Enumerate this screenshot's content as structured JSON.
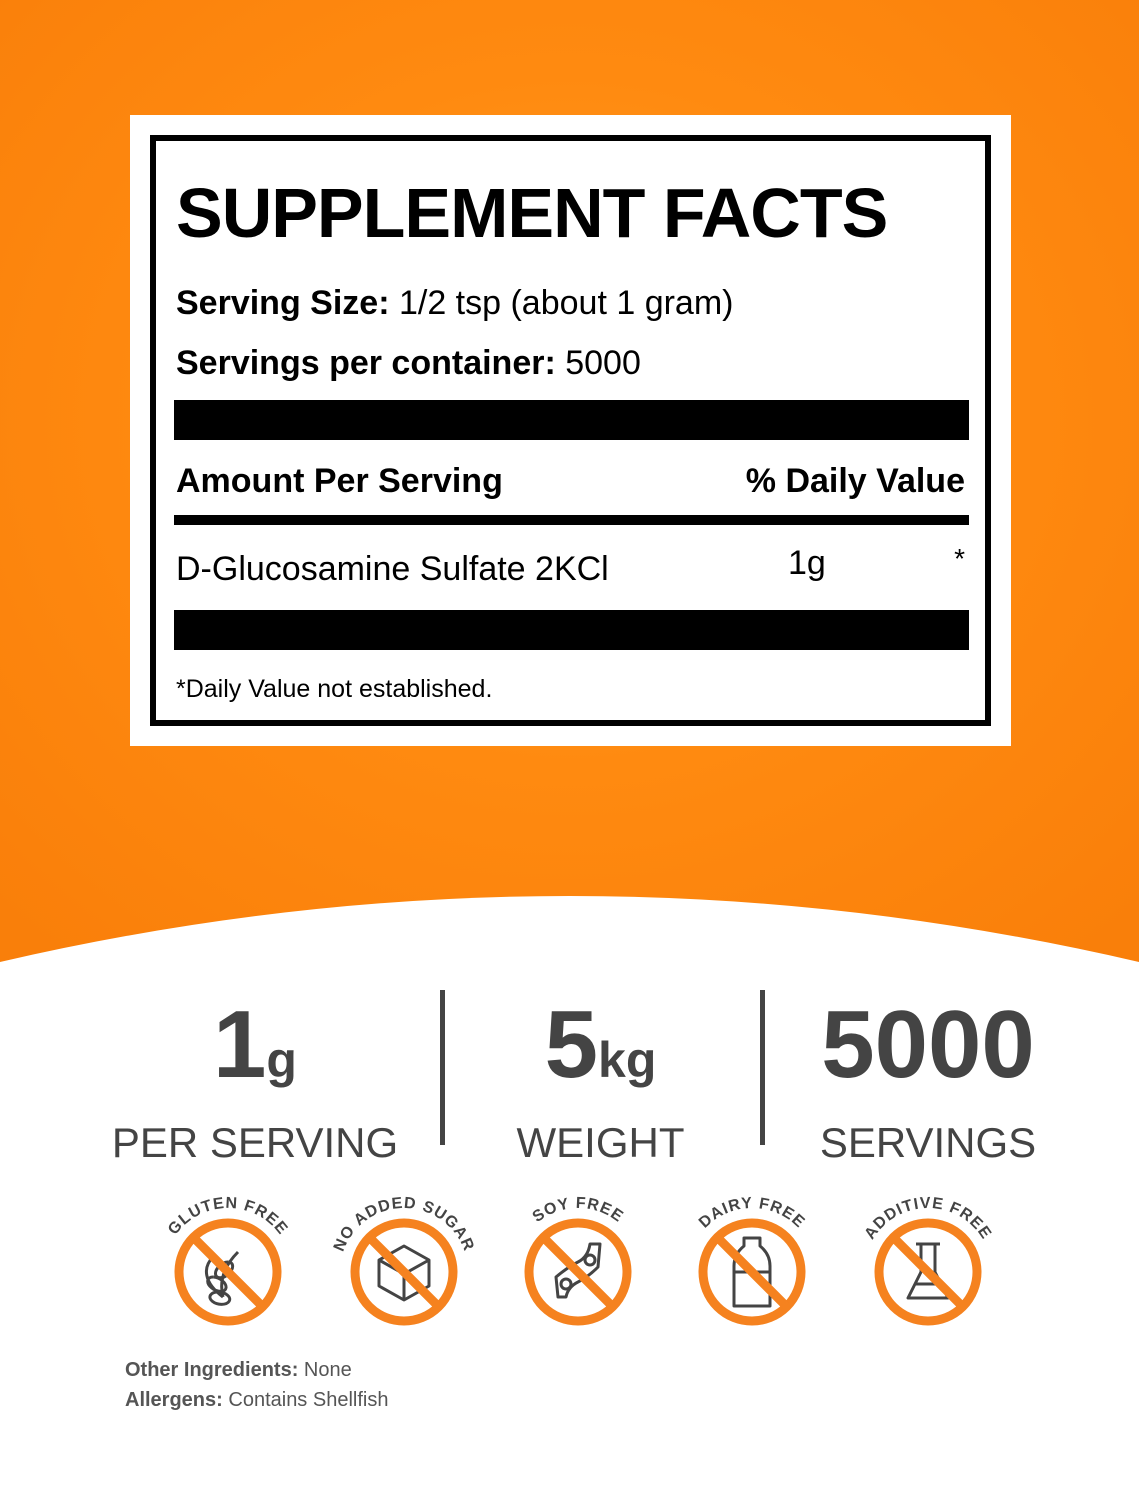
{
  "label": {
    "title": "SUPPLEMENT FACTS",
    "serving_size_label": "Serving Size:",
    "serving_size": "1/2 tsp (about 1 gram)",
    "servings_label": "Servings per container:",
    "servings": "5000",
    "amount_header": "Amount Per Serving",
    "dv_header": "% Daily Value",
    "ingredient": "D-Glucosamine Sulfate 2KCl",
    "amount": "1g",
    "dv": "*",
    "footnote": "*Daily Value not established."
  },
  "stats": [
    {
      "value": "1",
      "unit": "g",
      "caption": "PER SERVING"
    },
    {
      "value": "5",
      "unit": "kg",
      "caption": "WEIGHT"
    },
    {
      "value": "5000",
      "unit": "",
      "caption": "SERVINGS"
    }
  ],
  "badges": [
    {
      "text": "GLUTEN FREE",
      "icon": "wheat-icon"
    },
    {
      "text": "NO ADDED SUGAR",
      "icon": "sugar-cube-icon"
    },
    {
      "text": "SOY FREE",
      "icon": "soybean-icon"
    },
    {
      "text": "DAIRY FREE",
      "icon": "milk-bottle-icon"
    },
    {
      "text": "ADDITIVE FREE",
      "icon": "flask-icon"
    }
  ],
  "footer": {
    "other_label": "Other Ingredients:",
    "other": "None",
    "allergens_label": "Allergens:",
    "allergens": "Contains Shellfish"
  },
  "colors": {
    "orange": "#F5821F",
    "text": "#444444"
  }
}
